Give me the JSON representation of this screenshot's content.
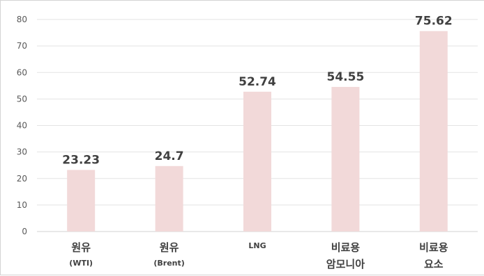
{
  "chart_data": {
    "type": "bar",
    "categories": [
      {
        "line1": "원유",
        "line2": "(WTI)"
      },
      {
        "line1": "원유",
        "line2": "(Brent)"
      },
      {
        "line1": "LNG",
        "line2": ""
      },
      {
        "line1": "비료용",
        "line2": "암모니아"
      },
      {
        "line1": "비료용",
        "line2": "요소"
      }
    ],
    "values": [
      23.23,
      24.7,
      52.74,
      54.55,
      75.62
    ],
    "value_labels": [
      "23.23",
      "24.7",
      "52.74",
      "54.55",
      "75.62"
    ],
    "yticks": [
      "0",
      "10",
      "20",
      "30",
      "40",
      "50",
      "60",
      "70",
      "80"
    ],
    "ylim": [
      0,
      80
    ],
    "bar_color": "#f2d9d9",
    "grid": true,
    "title": "",
    "xlabel": "",
    "ylabel": ""
  }
}
